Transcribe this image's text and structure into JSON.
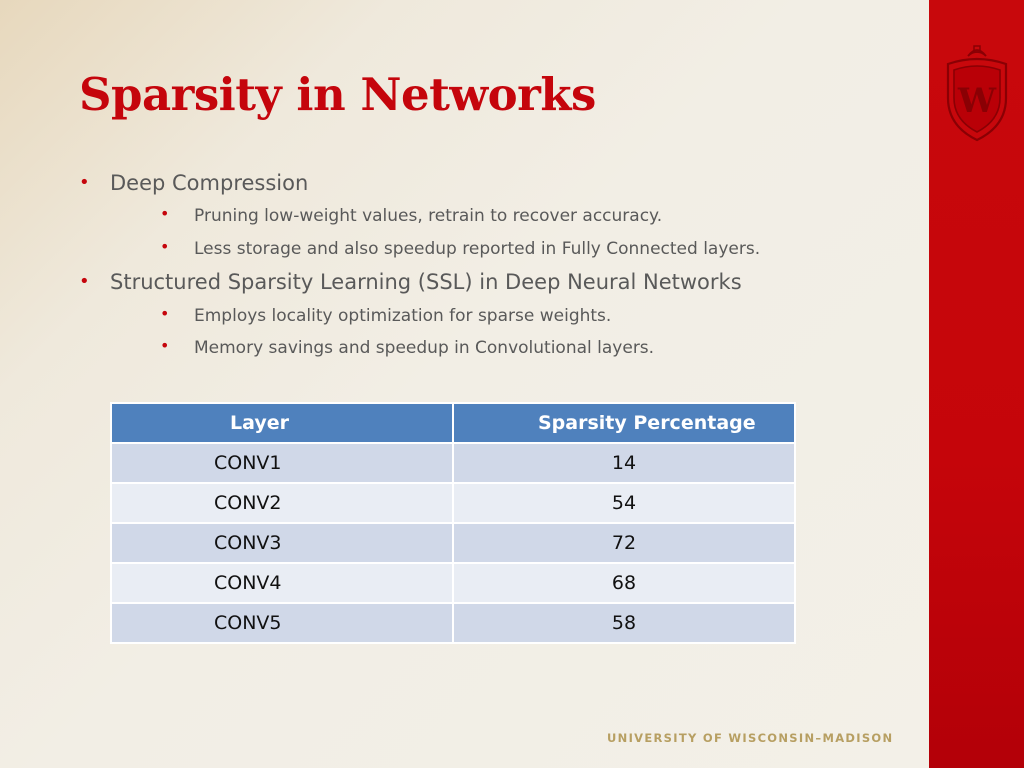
{
  "slide": {
    "title": "Sparsity in Networks",
    "bullets": [
      {
        "text": "Deep Compression",
        "sub": [
          "Pruning low-weight values, retrain to recover accuracy.",
          "Less storage and also speedup reported in Fully Connected layers."
        ]
      },
      {
        "text": "Structured Sparsity Learning (SSL) in Deep Neural Networks",
        "sub": [
          "Employs locality optimization for sparse weights.",
          "Memory savings and speedup in Convolutional layers."
        ]
      }
    ],
    "table": {
      "headers": [
        "Layer",
        "Sparsity Percentage"
      ],
      "rows": [
        [
          "CONV1",
          "14"
        ],
        [
          "CONV2",
          "54"
        ],
        [
          "CONV3",
          "72"
        ],
        [
          "CONV4",
          "68"
        ],
        [
          "CONV5",
          "58"
        ]
      ]
    },
    "footer": "UNIVERSITY OF WISCONSIN–MADISON",
    "logo_letter": "W",
    "colors": {
      "accent_red": "#c5050c",
      "table_header": "#4f81bd",
      "row_odd": "#d0d8e8",
      "row_even": "#e9edf4",
      "footer_text": "#b79f62",
      "body_text": "#595959"
    },
    "icons": {
      "crest": "uw-crest-icon",
      "bullet": "bullet-dot-icon"
    }
  }
}
